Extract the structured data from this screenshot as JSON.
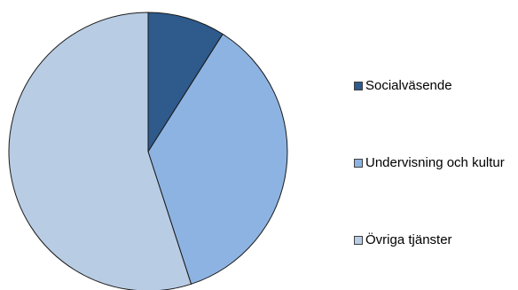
{
  "chart_data": {
    "type": "pie",
    "title": "",
    "slices": [
      {
        "label": "Socialväsende",
        "value": 9,
        "color": "#2E5A8C"
      },
      {
        "label": "Undervisning och kultur",
        "value": 36,
        "color": "#8DB3E2"
      },
      {
        "label": "Övriga tjänster",
        "value": 55,
        "color": "#B8CCE4"
      }
    ],
    "start_angle_deg": 0,
    "direction": "clockwise",
    "legend_position": "right",
    "slice_border_color": "#1a1a1a"
  }
}
